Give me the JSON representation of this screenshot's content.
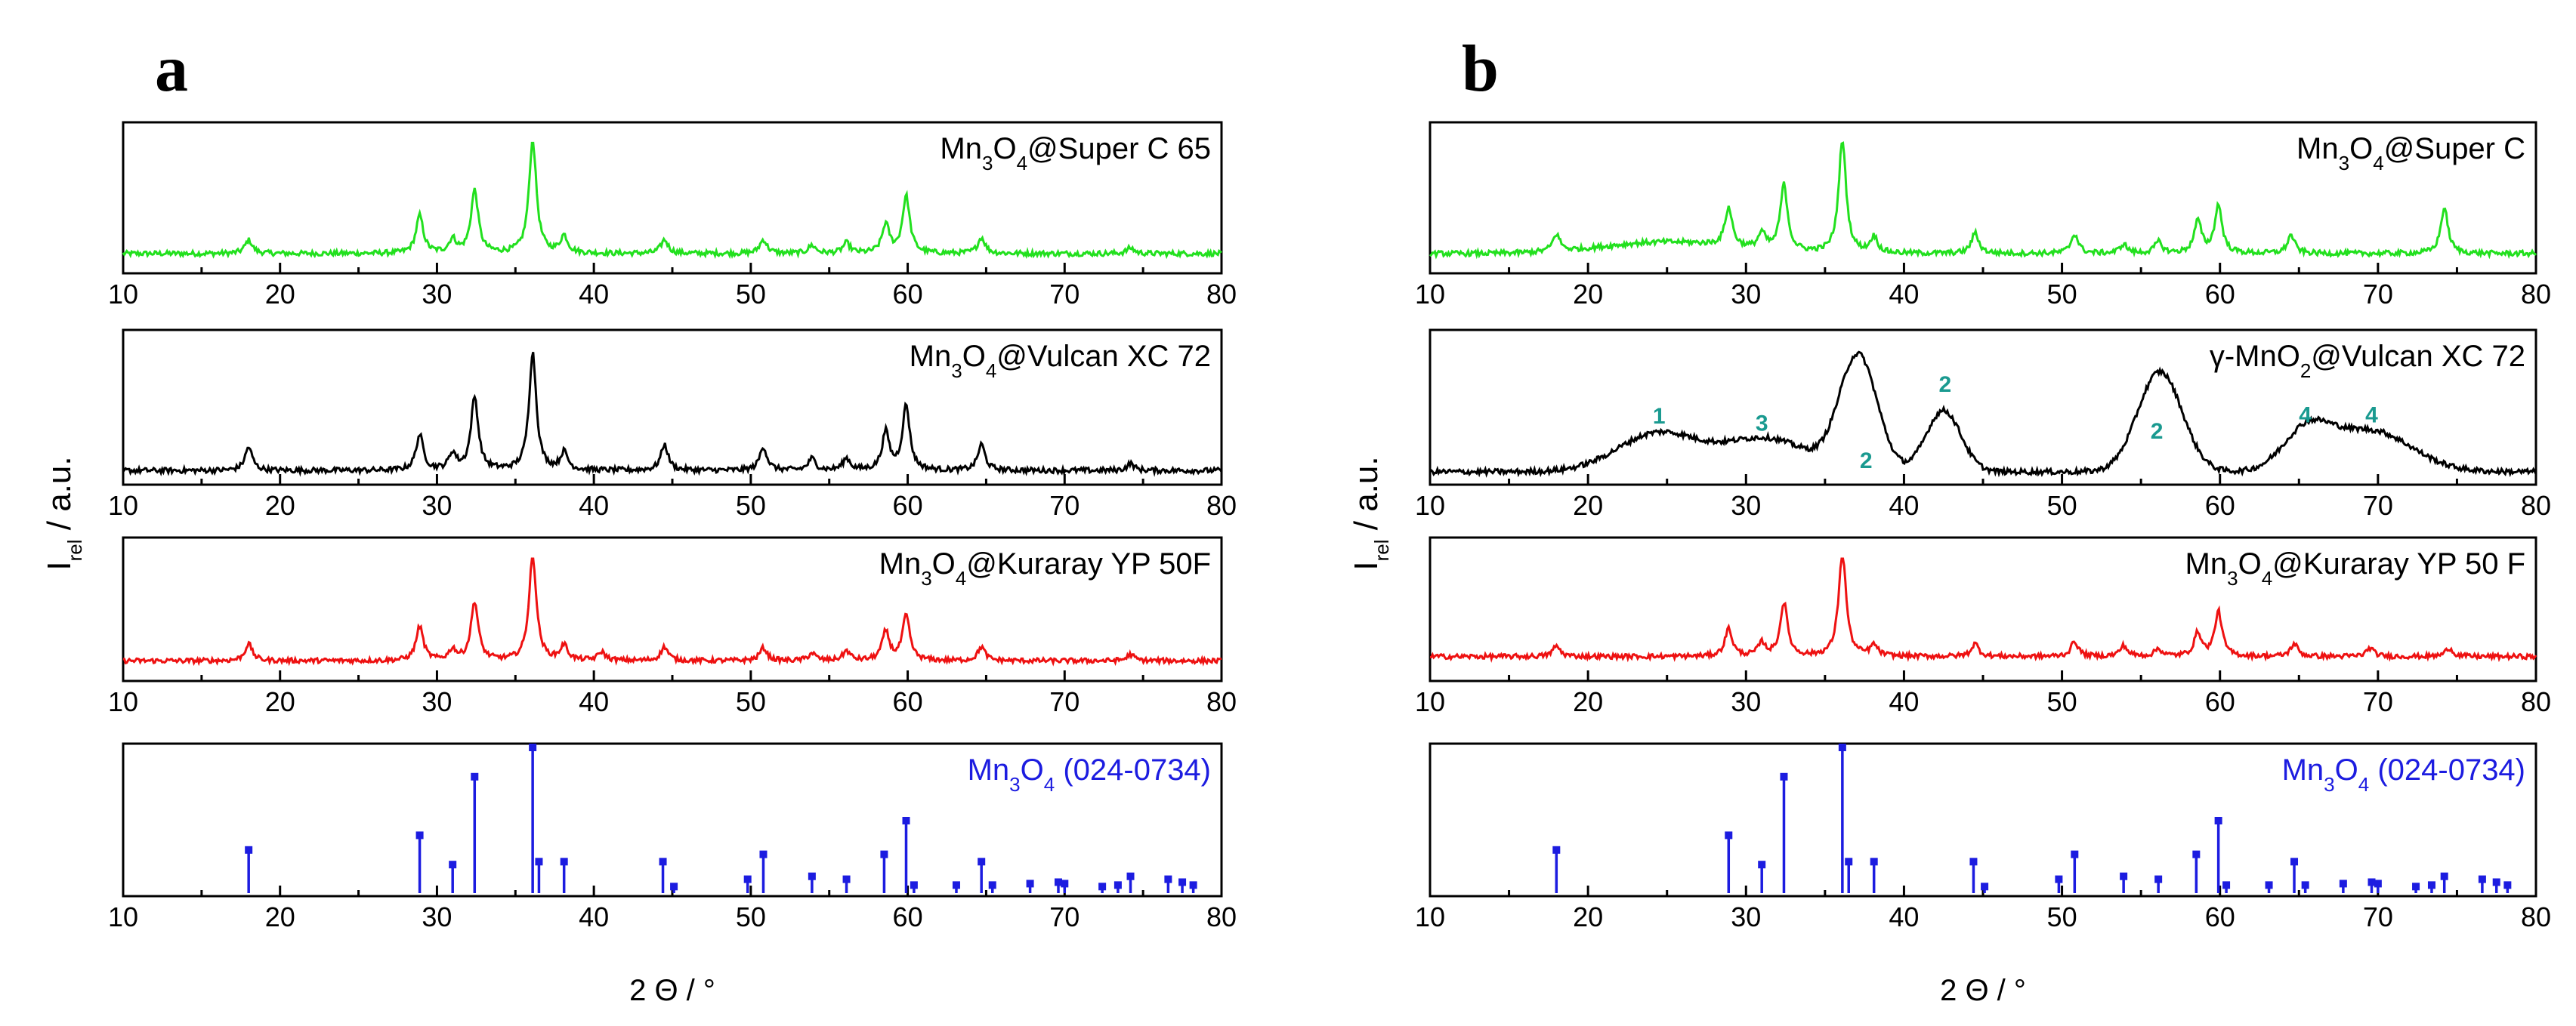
{
  "figure": {
    "x_axis_title": "2 Θ / °",
    "y_axis_title": {
      "main": "I",
      "sub": "rel",
      "suffix": " / a.u."
    }
  },
  "chart_data": [
    {
      "type": "line",
      "panel": "a",
      "panel_label": "a",
      "title": "Mn3O4@Super C 65",
      "label_parts": [
        {
          "t": "Mn"
        },
        {
          "t": "3",
          "sub": true
        },
        {
          "t": "O"
        },
        {
          "t": "4",
          "sub": true
        },
        {
          "t": "@Super C 65"
        }
      ],
      "color": "#22e01e",
      "xlim": [
        10,
        80
      ],
      "xticks": [
        10,
        20,
        30,
        40,
        50,
        60,
        70,
        80
      ],
      "xlabel": "2 Θ / °",
      "ylabel": "Irel / a.u.",
      "baseline": 0.08,
      "peaks": [
        [
          18.0,
          0.12
        ],
        [
          28.9,
          0.33
        ],
        [
          31.0,
          0.12
        ],
        [
          32.4,
          0.55
        ],
        [
          36.1,
          1.0
        ],
        [
          38.1,
          0.15
        ],
        [
          44.5,
          0.12
        ],
        [
          50.8,
          0.12
        ],
        [
          53.9,
          0.07
        ],
        [
          56.1,
          0.09
        ],
        [
          58.6,
          0.25
        ],
        [
          59.9,
          0.5
        ],
        [
          64.7,
          0.14
        ],
        [
          74.2,
          0.05
        ]
      ]
    },
    {
      "type": "line",
      "panel": "a",
      "panel_label": "",
      "title": "Mn3O4@Vulcan XC 72",
      "label_parts": [
        {
          "t": "Mn"
        },
        {
          "t": "3",
          "sub": true
        },
        {
          "t": "O"
        },
        {
          "t": "4",
          "sub": true
        },
        {
          "t": "@Vulcan XC 72"
        }
      ],
      "color": "#000000",
      "xlim": [
        10,
        80
      ],
      "xticks": [
        10,
        20,
        30,
        40,
        50,
        60,
        70,
        80
      ],
      "xlabel": "2 Θ / °",
      "ylabel": "Irel / a.u.",
      "baseline": 0.03,
      "peaks": [
        [
          18.0,
          0.2
        ],
        [
          28.9,
          0.3
        ],
        [
          31.0,
          0.14
        ],
        [
          32.4,
          0.62
        ],
        [
          36.1,
          1.0
        ],
        [
          38.1,
          0.15
        ],
        [
          44.5,
          0.22
        ],
        [
          50.8,
          0.2
        ],
        [
          53.9,
          0.1
        ],
        [
          56.1,
          0.1
        ],
        [
          58.6,
          0.32
        ],
        [
          59.9,
          0.55
        ],
        [
          64.7,
          0.22
        ],
        [
          74.2,
          0.06
        ]
      ]
    },
    {
      "type": "line",
      "panel": "a",
      "panel_label": "",
      "title": "Mn3O4@Kuraray YP 50F",
      "label_parts": [
        {
          "t": "Mn"
        },
        {
          "t": "3",
          "sub": true
        },
        {
          "t": "O"
        },
        {
          "t": "4",
          "sub": true
        },
        {
          "t": "@Kuraray YP 50F"
        }
      ],
      "color": "#ee1111",
      "xlim": [
        10,
        80
      ],
      "xticks": [
        10,
        20,
        30,
        40,
        50,
        60,
        70,
        80
      ],
      "xlabel": "2 Θ / °",
      "ylabel": "Irel / a.u.",
      "baseline": 0.09,
      "peaks": [
        [
          18.0,
          0.16
        ],
        [
          28.9,
          0.32
        ],
        [
          31.0,
          0.1
        ],
        [
          32.4,
          0.55
        ],
        [
          36.1,
          1.0
        ],
        [
          38.1,
          0.14
        ],
        [
          40.5,
          0.08
        ],
        [
          44.5,
          0.13
        ],
        [
          50.8,
          0.12
        ],
        [
          53.9,
          0.07
        ],
        [
          56.1,
          0.09
        ],
        [
          58.6,
          0.27
        ],
        [
          59.9,
          0.42
        ],
        [
          64.7,
          0.13
        ],
        [
          74.2,
          0.06
        ]
      ]
    },
    {
      "type": "bar",
      "panel": "a",
      "panel_label": "",
      "title": "Mn3O4 (024-0734)",
      "label_parts": [
        {
          "t": "Mn"
        },
        {
          "t": "3",
          "sub": true
        },
        {
          "t": "O"
        },
        {
          "t": "4",
          "sub": true
        },
        {
          "t": " (024-0734)"
        }
      ],
      "color": "#1c1ce0",
      "xlim": [
        10,
        80
      ],
      "xticks": [
        10,
        20,
        30,
        40,
        50,
        60,
        70,
        80
      ],
      "xlabel": "2 Θ / °",
      "ylabel": "Irel / a.u.",
      "x": [
        18.0,
        28.9,
        31.0,
        32.4,
        36.1,
        36.5,
        38.1,
        44.4,
        45.1,
        49.8,
        50.8,
        53.9,
        56.1,
        58.5,
        59.9,
        60.4,
        63.1,
        64.7,
        65.4,
        67.8,
        69.6,
        70.0,
        72.4,
        73.4,
        74.2,
        76.6,
        77.5,
        78.2
      ],
      "values": [
        0.3,
        0.4,
        0.2,
        0.8,
        1.0,
        0.22,
        0.22,
        0.22,
        0.05,
        0.1,
        0.27,
        0.12,
        0.1,
        0.27,
        0.5,
        0.06,
        0.06,
        0.22,
        0.06,
        0.07,
        0.08,
        0.07,
        0.05,
        0.06,
        0.12,
        0.1,
        0.08,
        0.06
      ]
    },
    {
      "type": "line",
      "panel": "b",
      "panel_label": "b",
      "title": "Mn3O4@Super C",
      "label_parts": [
        {
          "t": "Mn"
        },
        {
          "t": "3",
          "sub": true
        },
        {
          "t": "O"
        },
        {
          "t": "4",
          "sub": true
        },
        {
          "t": "@Super C"
        }
      ],
      "color": "#22e01e",
      "xlim": [
        10,
        80
      ],
      "xticks": [
        10,
        20,
        30,
        40,
        50,
        60,
        70,
        80
      ],
      "xlabel": "2 Θ / °",
      "ylabel": "Irel / a.u.",
      "baseline": 0.08,
      "broad": [
        [
          25.0,
          0.1,
          4
        ]
      ],
      "peaks": [
        [
          18.0,
          0.15
        ],
        [
          28.9,
          0.34
        ],
        [
          31.0,
          0.14
        ],
        [
          32.4,
          0.58
        ],
        [
          36.1,
          1.0
        ],
        [
          38.1,
          0.14
        ],
        [
          44.5,
          0.18
        ],
        [
          50.8,
          0.17
        ],
        [
          53.9,
          0.08
        ],
        [
          56.1,
          0.1
        ],
        [
          58.6,
          0.28
        ],
        [
          59.9,
          0.42
        ],
        [
          64.5,
          0.16
        ],
        [
          74.2,
          0.4
        ]
      ]
    },
    {
      "type": "line",
      "panel": "b",
      "panel_label": "",
      "title": "γ-MnO2@Vulcan XC 72",
      "label_parts": [
        {
          "t": "γ-MnO"
        },
        {
          "t": "2",
          "sub": true
        },
        {
          "t": "@Vulcan XC 72"
        }
      ],
      "color": "#000000",
      "xlim": [
        10,
        80
      ],
      "xticks": [
        10,
        20,
        30,
        40,
        50,
        60,
        70,
        80
      ],
      "xlabel": "2 Θ / °",
      "ylabel": "Irel / a.u.",
      "baseline": 0.02,
      "broad": [
        [
          24.5,
          0.33,
          2.6
        ],
        [
          31.3,
          0.28,
          2.6
        ],
        [
          37.1,
          0.98,
          1.2
        ],
        [
          42.5,
          0.52,
          1.1
        ],
        [
          56.2,
          0.85,
          1.4
        ],
        [
          65.5,
          0.32,
          1.5
        ],
        [
          69.5,
          0.35,
          2.6
        ]
      ],
      "peaks": [],
      "annotations": [
        {
          "text": "1",
          "x": 24.5,
          "y": 0.43
        },
        {
          "text": "3",
          "x": 31.0,
          "y": 0.37
        },
        {
          "text": "2",
          "x": 37.6,
          "y": 0.05
        },
        {
          "text": "2",
          "x": 42.6,
          "y": 0.7
        },
        {
          "text": "2",
          "x": 56.0,
          "y": 0.3
        },
        {
          "text": "4",
          "x": 65.4,
          "y": 0.44
        },
        {
          "text": "4",
          "x": 69.6,
          "y": 0.44
        }
      ]
    },
    {
      "type": "line",
      "panel": "b",
      "panel_label": "",
      "title": "Mn3O4@Kuraray YP 50 F",
      "label_parts": [
        {
          "t": "Mn"
        },
        {
          "t": "3",
          "sub": true
        },
        {
          "t": "O"
        },
        {
          "t": "4",
          "sub": true
        },
        {
          "t": "@Kuraray YP 50 F"
        }
      ],
      "color": "#ee1111",
      "xlim": [
        10,
        80
      ],
      "xticks": [
        10,
        20,
        30,
        40,
        50,
        60,
        70,
        80
      ],
      "xlabel": "2 Θ / °",
      "ylabel": "Irel / a.u.",
      "baseline": 0.13,
      "peaks": [
        [
          18.0,
          0.1
        ],
        [
          28.9,
          0.26
        ],
        [
          31.0,
          0.12
        ],
        [
          32.4,
          0.5
        ],
        [
          36.1,
          1.0
        ],
        [
          38.1,
          0.1
        ],
        [
          44.5,
          0.12
        ],
        [
          50.8,
          0.14
        ],
        [
          53.9,
          0.1
        ],
        [
          56.1,
          0.07
        ],
        [
          58.6,
          0.22
        ],
        [
          59.9,
          0.42
        ],
        [
          64.7,
          0.12
        ],
        [
          69.5,
          0.08
        ],
        [
          74.5,
          0.08
        ]
      ]
    },
    {
      "type": "bar",
      "panel": "b",
      "panel_label": "",
      "title": "Mn3O4 (024-0734)",
      "label_parts": [
        {
          "t": "Mn"
        },
        {
          "t": "3",
          "sub": true
        },
        {
          "t": "O"
        },
        {
          "t": "4",
          "sub": true
        },
        {
          "t": " (024-0734)"
        }
      ],
      "color": "#1c1ce0",
      "xlim": [
        10,
        80
      ],
      "xticks": [
        10,
        20,
        30,
        40,
        50,
        60,
        70,
        80
      ],
      "xlabel": "2 Θ / °",
      "ylabel": "Irel / a.u.",
      "x": [
        18.0,
        28.9,
        31.0,
        32.4,
        36.1,
        36.5,
        38.1,
        44.4,
        45.1,
        49.8,
        50.8,
        53.9,
        56.1,
        58.5,
        59.9,
        60.4,
        63.1,
        64.7,
        65.4,
        67.8,
        69.6,
        70.0,
        72.4,
        73.4,
        74.2,
        76.6,
        77.5,
        78.2
      ],
      "values": [
        0.3,
        0.4,
        0.2,
        0.8,
        1.0,
        0.22,
        0.22,
        0.22,
        0.05,
        0.1,
        0.27,
        0.12,
        0.1,
        0.27,
        0.5,
        0.06,
        0.06,
        0.22,
        0.06,
        0.07,
        0.08,
        0.07,
        0.05,
        0.06,
        0.12,
        0.1,
        0.08,
        0.06
      ]
    }
  ]
}
